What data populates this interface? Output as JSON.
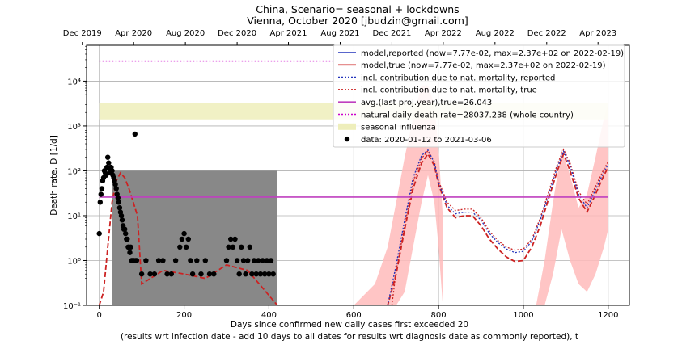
{
  "chart_data": {
    "type": "line",
    "title": [
      "China, Scenario= seasonal + lockdowns",
      "Vienna, October 2020 [jbudzin@gmail.com]"
    ],
    "xlabel": "Days since confirmed new daily cases first exceeded 20",
    "xlabel2": "(results wrt infection date - add 10 days to all dates for results wrt diagnosis date as commonly reported), t",
    "ylabel": "Death rate, Ḋ [1/d]",
    "xlim": [
      -30,
      1250
    ],
    "ylim_log10": [
      -1,
      4.8
    ],
    "y_scale": "log",
    "grid": true,
    "x_ticks": [
      0,
      200,
      400,
      600,
      800,
      1000,
      1200
    ],
    "x_tick_labels": [
      "0",
      "200",
      "400",
      "600",
      "800",
      "1000",
      "1200"
    ],
    "y_ticks": [
      0.1,
      1,
      10,
      100,
      1000,
      10000
    ],
    "y_tick_labels": [
      "10⁻¹",
      "10⁰",
      "10¹",
      "10²",
      "10³",
      "10⁴"
    ],
    "top_axis_labels": [
      "Dec 2019",
      "Apr 2020",
      "Aug 2020",
      "Dec 2020",
      "Apr 2021",
      "Aug 2021",
      "Dec 2021",
      "Apr 2022",
      "Aug 2022",
      "Dec 2022",
      "Apr 2023"
    ],
    "top_axis_days": [
      -40,
      81,
      203,
      325,
      446,
      568,
      690,
      811,
      933,
      1055,
      1176
    ],
    "legend_position": "top-right",
    "legend": [
      {
        "label": "model,reported (now=7.77e-02, max=2.37e+02 on 2022-02-19)",
        "color": "#2233bb",
        "style": "solid"
      },
      {
        "label": "model,true (now=7.77e-02, max=2.37e+02 on 2022-02-19)",
        "color": "#cc2222",
        "style": "solid"
      },
      {
        "label": "incl. contribution due to nat. mortality, reported",
        "color": "#2233bb",
        "style": "dotted"
      },
      {
        "label": "incl. contribution due to nat. mortality, true",
        "color": "#cc2222",
        "style": "dotted"
      },
      {
        "label": "avg.(last proj.year),true=26.043",
        "color": "#bf3fbf",
        "style": "solid"
      },
      {
        "label": "natural daily death rate=28037.238 (whole country)",
        "color": "#cc00cc",
        "style": "dotted"
      },
      {
        "label": "seasonal influenza",
        "color": "#eeeebb",
        "style": "patch"
      },
      {
        "label": "data: 2020-01-12 to 2021-03-06",
        "color": "#000000",
        "style": "marker"
      }
    ],
    "series": [
      {
        "name": "model,true (now=7.77e-02, max=2.37e+02 on 2022-02-19)",
        "color": "#cc2222",
        "x": [
          0,
          10,
          20,
          30,
          40,
          50,
          60,
          70,
          80,
          90,
          100,
          150,
          200,
          250,
          300,
          350,
          420,
          500,
          600,
          650,
          680,
          700,
          720,
          740,
          760,
          775,
          790,
          800,
          820,
          840,
          860,
          880,
          900,
          920,
          940,
          960,
          980,
          1000,
          1020,
          1040,
          1060,
          1080,
          1095,
          1110,
          1130,
          1150,
          1170,
          1190,
          1200
        ],
        "y": [
          0.1,
          0.2,
          2,
          20,
          60,
          90,
          70,
          40,
          20,
          10,
          0.3,
          0.6,
          0.5,
          0.4,
          0.8,
          0.6,
          0.1,
          0.01,
          0.01,
          0.02,
          0.1,
          0.5,
          5,
          40,
          150,
          237,
          130,
          50,
          15,
          9,
          10,
          10,
          6,
          3,
          1.8,
          1.2,
          0.95,
          1.0,
          2.0,
          6,
          25,
          100,
          237,
          100,
          25,
          12,
          30,
          80,
          120
        ]
      },
      {
        "name": "incl. contribution due to nat. mortality, true",
        "color": "#cc2222",
        "x": [
          690,
          700,
          720,
          740,
          760,
          775,
          790,
          800,
          820,
          840,
          860,
          880,
          900,
          920,
          940,
          960,
          980,
          1000,
          1020,
          1040,
          1060,
          1080,
          1095,
          1110,
          1130,
          1150,
          1170,
          1190,
          1200
        ],
        "y": [
          0.1,
          0.6,
          6,
          55,
          190,
          280,
          160,
          60,
          20,
          13,
          14,
          14,
          9,
          4.5,
          2.8,
          2.0,
          1.7,
          1.8,
          3.0,
          9,
          35,
          140,
          300,
          150,
          35,
          18,
          45,
          110,
          160
        ]
      },
      {
        "name": "incl. contribution due to nat. mortality, reported",
        "color": "#2233bb",
        "x": [
          680,
          700,
          720,
          740,
          760,
          775,
          790,
          800,
          820,
          840,
          860,
          880,
          900,
          920,
          940,
          960,
          980,
          1000,
          1020,
          1040,
          1060,
          1080,
          1095,
          1110,
          1130,
          1150,
          1170,
          1190,
          1200
        ],
        "y": [
          0.1,
          0.8,
          8,
          70,
          220,
          290,
          150,
          55,
          17,
          11,
          12,
          12,
          8,
          4,
          2.5,
          1.8,
          1.5,
          1.6,
          2.7,
          8,
          30,
          120,
          270,
          130,
          30,
          15,
          38,
          95,
          140
        ]
      },
      {
        "name": "avg.(last proj.year),true=26.043",
        "color": "#bf3fbf",
        "x": [
          0,
          1200
        ],
        "y": [
          26.043,
          26.043
        ]
      },
      {
        "name": "natural daily death rate=28037.238 (whole country)",
        "color": "#cc00cc",
        "x": [
          0,
          550
        ],
        "y": [
          28037.238,
          28037.238
        ]
      }
    ],
    "bands": [
      {
        "name": "model uncertainty",
        "color": "#ffbbbb",
        "x": [
          600,
          650,
          680,
          700,
          720,
          740,
          760,
          775,
          790,
          800,
          810
        ],
        "lower": [
          0.1,
          0.1,
          0.1,
          0.1,
          0.2,
          2,
          20,
          80,
          20,
          2,
          0.1
        ],
        "upper": [
          0.1,
          0.3,
          2,
          20,
          200,
          1500,
          8000,
          8000,
          3000,
          300,
          10
        ]
      },
      {
        "name": "model uncertainty 2",
        "color": "#ffbbbb",
        "x": [
          1030,
          1050,
          1070,
          1090,
          1110,
          1130,
          1150,
          1170,
          1190,
          1200
        ],
        "lower": [
          0.1,
          0.1,
          0.5,
          5,
          1,
          0.3,
          0.2,
          0.5,
          2,
          5
        ],
        "upper": [
          0.1,
          1,
          20,
          300,
          80,
          15,
          30,
          200,
          1500,
          3000
        ]
      },
      {
        "name": "seasonal influenza",
        "color": "#eeeebb",
        "x": [
          0,
          1200
        ],
        "lower": [
          1400,
          1400
        ],
        "upper": [
          3300,
          3300
        ]
      },
      {
        "name": "gray range",
        "color": "#888888",
        "x": [
          30,
          420
        ],
        "lower": [
          0.1,
          0.1
        ],
        "upper": [
          100,
          100
        ]
      }
    ],
    "data_points": {
      "name": "data: 2020-01-12 to 2021-03-06",
      "color": "#000000",
      "x": [
        0,
        2,
        4,
        6,
        8,
        10,
        12,
        14,
        16,
        18,
        20,
        22,
        24,
        26,
        28,
        30,
        32,
        34,
        36,
        38,
        40,
        42,
        44,
        46,
        48,
        50,
        52,
        54,
        56,
        58,
        60,
        62,
        64,
        66,
        68,
        70,
        72,
        74,
        76,
        78,
        80,
        82,
        84,
        86,
        88,
        100,
        110,
        120,
        130,
        140,
        150,
        160,
        170,
        180,
        190,
        195,
        200,
        205,
        210,
        215,
        220,
        230,
        240,
        250,
        260,
        270,
        300,
        305,
        310,
        315,
        320,
        325,
        330,
        335,
        340,
        345,
        350,
        355,
        360,
        365,
        370,
        375,
        380,
        385,
        390,
        395,
        400,
        405,
        410
      ],
      "y": [
        4,
        20,
        30,
        40,
        60,
        70,
        100,
        90,
        80,
        120,
        200,
        150,
        110,
        90,
        120,
        100,
        80,
        70,
        60,
        50,
        40,
        30,
        25,
        20,
        15,
        12,
        10,
        8,
        6,
        5,
        5,
        4,
        3,
        3,
        2,
        2,
        1.5,
        2,
        1,
        1,
        1,
        1,
        660,
        1,
        1,
        0.5,
        1,
        0.5,
        0.5,
        1,
        1,
        0.5,
        0.5,
        1,
        2,
        3,
        4,
        2,
        3,
        1,
        0.5,
        1,
        0.5,
        1,
        0.5,
        0.5,
        1,
        2,
        3,
        2,
        3,
        1,
        0.5,
        2,
        1,
        0.5,
        1,
        2,
        0.5,
        1,
        0.5,
        1,
        0.5,
        1,
        0.5,
        1,
        0.5,
        1,
        0.5
      ]
    }
  }
}
